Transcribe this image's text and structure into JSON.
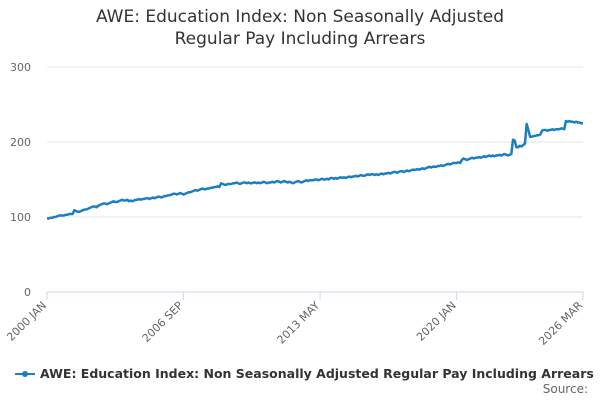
{
  "chart_data": {
    "type": "line",
    "title": "AWE: Education Index: Non Seasonally Adjusted Regular Pay Including Arrears",
    "source": "Source:",
    "categories": [
      "2000 JAN",
      null,
      null,
      null,
      null,
      null,
      null,
      null,
      null,
      null,
      null,
      null,
      null,
      null,
      null,
      null,
      null,
      null,
      null,
      null,
      null,
      null,
      null,
      null,
      null,
      null,
      null,
      null,
      null,
      null,
      null,
      null,
      null,
      null,
      null,
      null,
      null,
      null,
      null,
      null,
      null,
      null,
      null,
      null,
      null,
      null,
      null,
      null,
      null,
      null,
      null,
      null,
      null,
      null,
      null,
      null,
      null,
      null,
      null,
      null,
      null,
      null,
      null,
      null,
      null,
      null,
      null,
      null,
      null,
      null,
      null,
      null,
      null,
      null,
      null,
      null,
      null,
      null,
      null,
      null,
      "2006 SEP",
      null,
      null,
      null,
      null,
      null,
      null,
      null,
      null,
      null,
      null,
      null,
      null,
      null,
      null,
      null,
      null,
      null,
      null,
      null,
      null,
      null,
      null,
      null,
      null,
      null,
      null,
      null,
      null,
      null,
      null,
      null,
      null,
      null,
      null,
      null,
      null,
      null,
      null,
      null,
      null,
      null,
      null,
      null,
      null,
      null,
      null,
      null,
      null,
      null,
      null,
      null,
      null,
      null,
      null,
      null,
      null,
      null,
      null,
      null,
      null,
      null,
      null,
      null,
      null,
      null,
      null,
      null,
      null,
      null,
      null,
      null,
      null,
      null,
      null,
      null,
      null,
      null,
      null,
      null,
      "2013 MAY",
      null,
      null,
      null,
      null,
      null,
      null,
      null,
      null,
      null,
      null,
      null,
      null,
      null,
      null,
      null,
      null,
      null,
      null,
      null,
      null,
      null,
      null,
      null,
      null,
      null,
      null,
      null,
      null,
      null,
      null,
      null,
      null,
      null,
      null,
      null,
      null,
      null,
      null,
      null,
      null,
      null,
      null,
      null,
      null,
      null,
      null,
      null,
      null,
      null,
      null,
      null,
      null,
      null,
      null,
      null,
      null,
      null,
      null,
      null,
      null,
      null,
      null,
      null,
      null,
      null,
      null,
      null,
      null,
      null,
      null,
      null,
      null,
      null,
      null,
      null,
      null,
      null,
      null,
      null,
      "2020 JAN",
      null,
      null,
      null,
      null,
      null,
      null,
      null,
      null,
      null,
      null,
      null,
      null,
      null,
      null,
      null,
      null,
      null,
      null,
      null,
      null,
      null,
      null,
      null,
      null,
      null,
      null,
      null,
      null,
      null,
      null,
      null,
      null,
      null,
      null,
      null,
      null,
      null,
      null,
      null,
      null,
      null,
      null,
      null,
      null,
      null,
      null,
      null,
      null,
      null,
      null,
      null,
      null,
      null,
      null,
      null,
      null,
      null,
      null,
      null,
      null,
      null,
      null,
      null,
      null,
      null,
      null,
      null,
      null,
      null,
      null,
      null,
      null,
      null,
      "2026 MAR"
    ],
    "series": [
      {
        "name": "AWE: Education Index: Non Seasonally Adjusted Regular Pay Including Arrears",
        "color": "#1a7fc1",
        "values": [
          98,
          98,
          99,
          99,
          100,
          100,
          101,
          102,
          102,
          102,
          102,
          103,
          103,
          104,
          104,
          104,
          109,
          108,
          107,
          107,
          108,
          109,
          110,
          110,
          111,
          112,
          113,
          114,
          114,
          113,
          115,
          116,
          117,
          118,
          118,
          117,
          118,
          119,
          120,
          121,
          120,
          120,
          121,
          122,
          123,
          122,
          122,
          123,
          121,
          122,
          121,
          122,
          123,
          123,
          124,
          123,
          124,
          124,
          125,
          125,
          124,
          125,
          126,
          125,
          126,
          127,
          127,
          126,
          127,
          128,
          128,
          129,
          129,
          130,
          131,
          131,
          130,
          131,
          132,
          131,
          130,
          131,
          132,
          133,
          133,
          134,
          135,
          136,
          135,
          136,
          137,
          138,
          137,
          137,
          138,
          138,
          139,
          139,
          140,
          140,
          141,
          140,
          145,
          144,
          143,
          143,
          144,
          144,
          144,
          145,
          145,
          146,
          145,
          144,
          145,
          146,
          146,
          145,
          146,
          145,
          145,
          146,
          146,
          145,
          146,
          145,
          146,
          147,
          146,
          145,
          146,
          146,
          147,
          146,
          147,
          148,
          147,
          146,
          147,
          148,
          147,
          146,
          147,
          146,
          145,
          146,
          147,
          148,
          147,
          146,
          147,
          148,
          149,
          148,
          149,
          149,
          149,
          150,
          150,
          149,
          150,
          151,
          150,
          150,
          151,
          150,
          152,
          152,
          151,
          152,
          151,
          152,
          153,
          152,
          153,
          152,
          153,
          154,
          153,
          154,
          154,
          155,
          154,
          155,
          156,
          155,
          155,
          156,
          157,
          156,
          157,
          157,
          156,
          157,
          156,
          157,
          158,
          157,
          158,
          158,
          159,
          158,
          159,
          160,
          160,
          159,
          160,
          161,
          161,
          160,
          161,
          162,
          161,
          162,
          163,
          163,
          163,
          164,
          163,
          164,
          165,
          164,
          165,
          166,
          167,
          166,
          167,
          167,
          167,
          168,
          168,
          169,
          168,
          169,
          170,
          171,
          170,
          171,
          172,
          172,
          172,
          173,
          172,
          176,
          178,
          177,
          176,
          177,
          178,
          179,
          178,
          179,
          179,
          180,
          179,
          180,
          181,
          180,
          181,
          182,
          181,
          182,
          181,
          182,
          182,
          183,
          182,
          183,
          184,
          183,
          182,
          183,
          184,
          203,
          202,
          193,
          193,
          195,
          194,
          196,
          198,
          224,
          216,
          207,
          207,
          208,
          208,
          209,
          209,
          210,
          215,
          216,
          216,
          215,
          216,
          216,
          217,
          216,
          217,
          217,
          217,
          218,
          218,
          217,
          228,
          227,
          228,
          227,
          227,
          226,
          227,
          226,
          226,
          225,
          225
        ]
      }
    ],
    "ylim": [
      0,
      300
    ],
    "yticks": [
      0,
      100,
      200,
      300
    ],
    "grid": true,
    "legend": "bottom"
  }
}
